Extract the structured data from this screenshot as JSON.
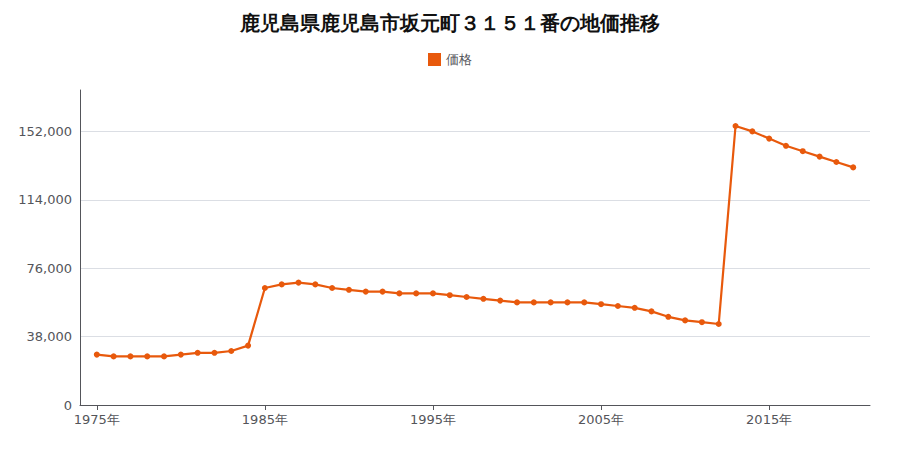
{
  "chart_data": {
    "type": "line",
    "title": "鹿児島県鹿児島市坂元町３１５１番の地価推移",
    "x": [
      1975,
      1976,
      1977,
      1978,
      1979,
      1980,
      1981,
      1982,
      1983,
      1984,
      1985,
      1986,
      1987,
      1988,
      1989,
      1990,
      1991,
      1992,
      1993,
      1994,
      1995,
      1996,
      1997,
      1998,
      1999,
      2000,
      2001,
      2002,
      2003,
      2004,
      2005,
      2006,
      2007,
      2008,
      2009,
      2010,
      2011,
      2012,
      2013,
      2014,
      2015,
      2016,
      2017,
      2018,
      2019,
      2020
    ],
    "series": [
      {
        "name": "価格",
        "color": "#e8590c",
        "values": [
          28000,
          27000,
          27000,
          27000,
          27000,
          28000,
          29000,
          29000,
          30000,
          33000,
          65000,
          67000,
          68000,
          67000,
          65000,
          64000,
          63000,
          63000,
          62000,
          62000,
          62000,
          61000,
          60000,
          59000,
          58000,
          57000,
          57000,
          57000,
          57000,
          57000,
          56000,
          55000,
          54000,
          52000,
          49000,
          47000,
          46000,
          45000,
          155000,
          152000,
          148000,
          144000,
          141000,
          138000,
          135000,
          132000
        ]
      }
    ],
    "xlim": [
      1974,
      2021
    ],
    "xticks": [
      {
        "value": 1975,
        "label": "1975年"
      },
      {
        "value": 1985,
        "label": "1985年"
      },
      {
        "value": 1995,
        "label": "1995年"
      },
      {
        "value": 2005,
        "label": "2005年"
      },
      {
        "value": 2015,
        "label": "2015年"
      }
    ],
    "ylim": [
      0,
      175000
    ],
    "yticks": [
      0,
      {
        "value": 38000,
        "label": "38,000"
      },
      {
        "value": 76000,
        "label": "76,000"
      },
      {
        "value": 114000,
        "label": "114,000"
      },
      {
        "value": 152000,
        "label": "152,000"
      }
    ],
    "grid": true,
    "legend": "top",
    "marker": "circle"
  }
}
